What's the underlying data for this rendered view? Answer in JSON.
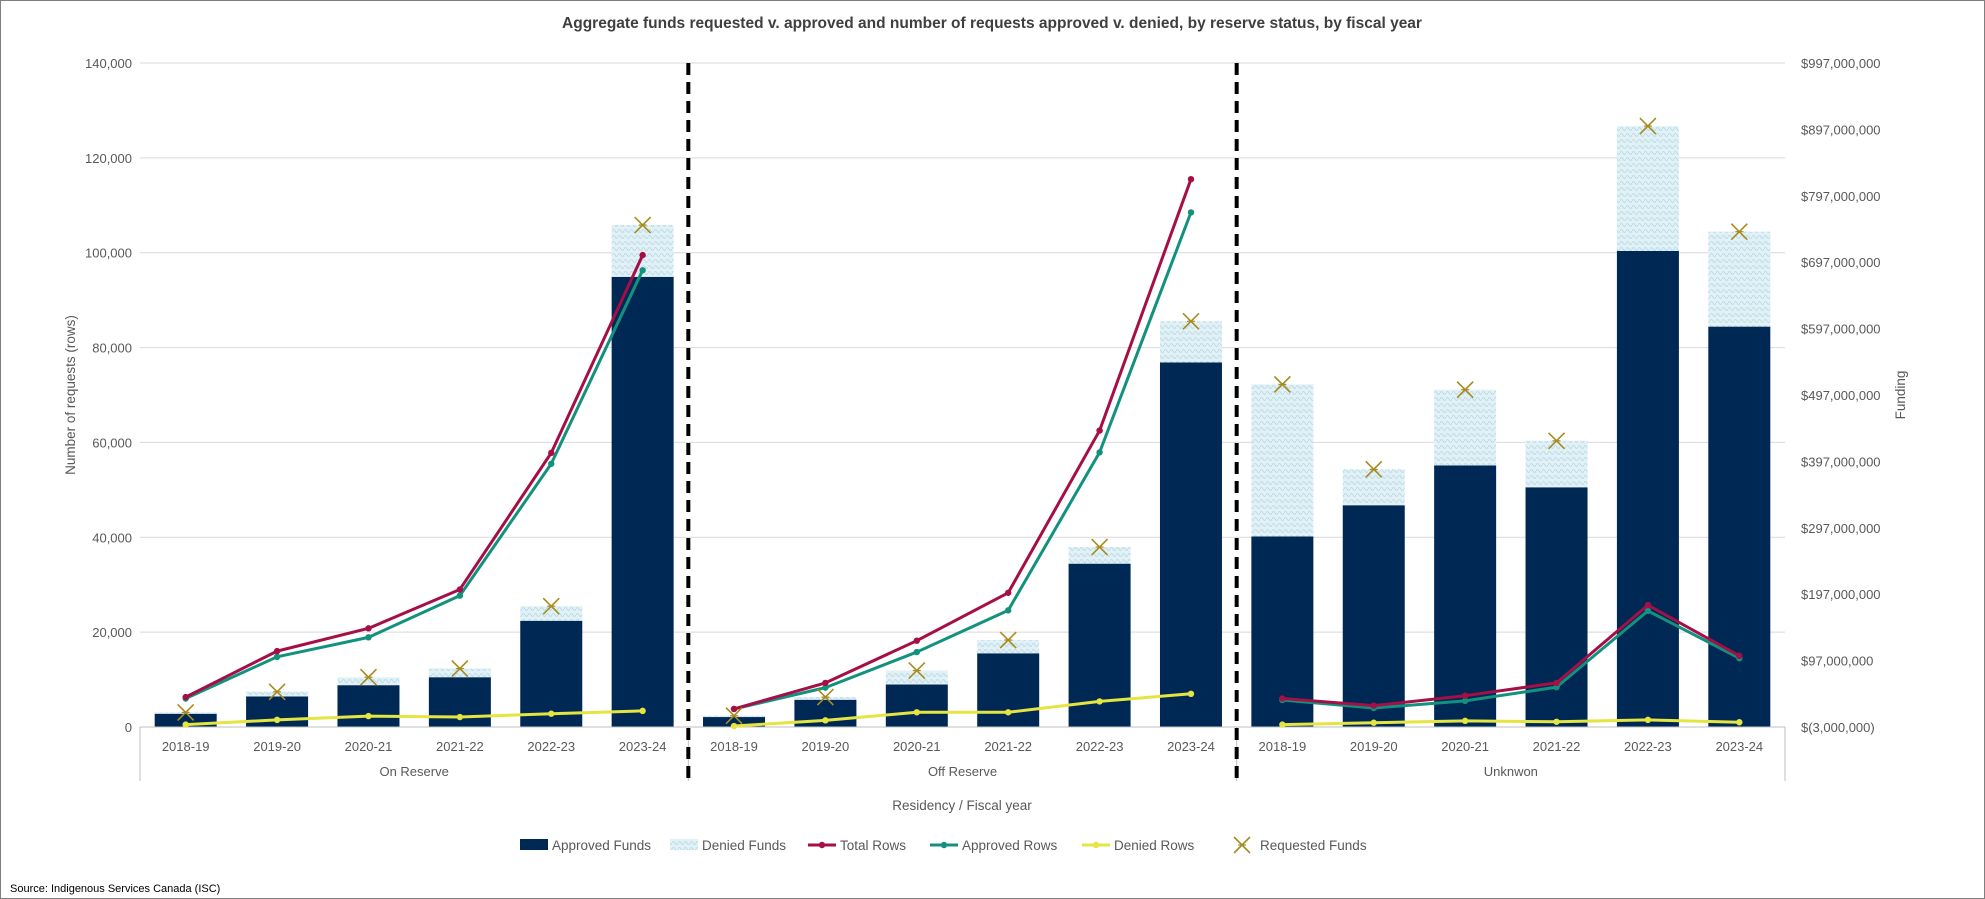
{
  "chart_data": {
    "type": "bar",
    "title": "Aggregate funds requested v. approved and number of requests approved v. denied, by reserve status, by fiscal year",
    "xlabel": "Residency / Fiscal year",
    "ylabel": "Number of requests (rows)",
    "y2label": "Funding",
    "ylim": [
      0,
      140000
    ],
    "y2lim": [
      -3000000,
      997000000
    ],
    "yticks": [
      "0",
      "20,000",
      "40,000",
      "60,000",
      "80,000",
      "100,000",
      "120,000",
      "140,000"
    ],
    "y2ticks": [
      "$(3,000,000)",
      "$97,000,000",
      "$197,000,000",
      "$297,000,000",
      "$397,000,000",
      "$497,000,000",
      "$597,000,000",
      "$697,000,000",
      "$797,000,000",
      "$897,000,000",
      "$997,000,000"
    ],
    "groups": [
      "On Reserve",
      "Off Reserve",
      "Unknwon"
    ],
    "categories": [
      "2018-19",
      "2019-20",
      "2020-21",
      "2021-22",
      "2022-23",
      "2023-24"
    ],
    "grid": true,
    "legend_position": "bottom",
    "colors": {
      "approved_funds": "#002855",
      "denied_funds": "#b7dde8",
      "total_rows": "#a50f45",
      "approved_rows": "#12917f",
      "denied_rows": "#e5e542",
      "requested_funds": "#a88b1f",
      "grid": "#d9d9d9",
      "separator": "#000000"
    },
    "series": [
      {
        "name": "Approved Funds",
        "axis": "right",
        "kind": "stacked-bar",
        "values": [
          [
            17000000,
            43000000,
            60000000,
            72000000,
            157000000,
            675000000
          ],
          [
            12000000,
            38000000,
            61000000,
            108000000,
            243000000,
            546000000
          ],
          [
            284000000,
            331000000,
            391000000,
            358000000,
            714000000,
            600000000
          ]
        ]
      },
      {
        "name": "Denied Funds",
        "axis": "right",
        "kind": "stacked-bar",
        "values": [
          [
            2000000,
            7000000,
            12000000,
            13000000,
            22000000,
            78000000
          ],
          [
            2000000,
            4000000,
            21000000,
            20000000,
            25000000,
            62000000
          ],
          [
            229000000,
            54000000,
            114000000,
            70000000,
            188000000,
            143000000
          ]
        ]
      },
      {
        "name": "Total Rows",
        "axis": "left",
        "kind": "line",
        "values": [
          [
            6300,
            16000,
            20800,
            29000,
            57800,
            99500
          ],
          [
            3800,
            9300,
            18200,
            28300,
            62500,
            115500
          ],
          [
            6000,
            4500,
            6600,
            9300,
            25700,
            15000
          ]
        ]
      },
      {
        "name": "Approved Rows",
        "axis": "left",
        "kind": "line",
        "values": [
          [
            6000,
            14800,
            18900,
            27700,
            55500,
            96300
          ],
          [
            3800,
            8300,
            15800,
            24600,
            57900,
            108500
          ],
          [
            5700,
            4000,
            5500,
            8400,
            24500,
            14500
          ]
        ]
      },
      {
        "name": "Denied Rows",
        "axis": "left",
        "kind": "line",
        "values": [
          [
            500,
            1500,
            2300,
            2100,
            2800,
            3400
          ],
          [
            200,
            1400,
            3100,
            3100,
            5400,
            7000
          ],
          [
            500,
            900,
            1300,
            1100,
            1500,
            1000
          ]
        ]
      },
      {
        "name": "Requested Funds",
        "axis": "right",
        "kind": "marker",
        "values": [
          [
            19000000,
            50000000,
            72000000,
            85000000,
            179000000,
            753000000
          ],
          [
            14000000,
            42000000,
            82000000,
            128000000,
            268000000,
            608000000
          ],
          [
            513000000,
            385000000,
            505000000,
            428000000,
            902000000,
            743000000
          ]
        ]
      }
    ]
  },
  "source": "Source: Indigenous Services Canada (ISC)"
}
